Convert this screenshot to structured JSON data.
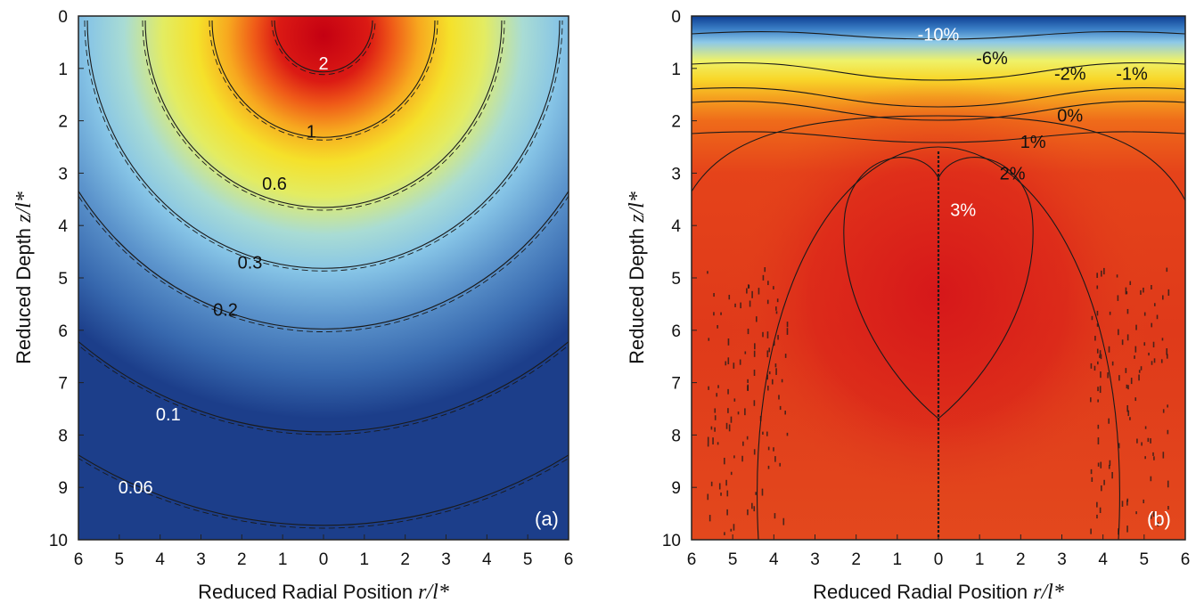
{
  "chart_data": [
    {
      "type": "heatmap",
      "panel_label": "(a)",
      "xlabel": {
        "prefix": "Reduced Radial Position ",
        "italic": "r/l*"
      },
      "ylabel": {
        "prefix": "Reduced Depth ",
        "italic": "z/l*"
      },
      "xlim": [
        -6,
        6
      ],
      "ylim": [
        0,
        10
      ],
      "xtick_labels": [
        "6",
        "5",
        "4",
        "3",
        "2",
        "1",
        "0",
        "1",
        "2",
        "3",
        "4",
        "5",
        "6"
      ],
      "ytick_labels": [
        "0",
        "1",
        "2",
        "3",
        "4",
        "5",
        "6",
        "7",
        "8",
        "9",
        "10"
      ],
      "contour_levels": [
        {
          "label": "2",
          "label_r": 0.0,
          "label_z": 0.9,
          "label_color": "#ffffff"
        },
        {
          "label": "1",
          "label_r": -0.3,
          "label_z": 2.2,
          "label_color": "#111111"
        },
        {
          "label": "0.6",
          "label_r": -1.2,
          "label_z": 3.2,
          "label_color": "#111111"
        },
        {
          "label": "0.3",
          "label_r": -1.8,
          "label_z": 4.7,
          "label_color": "#111111"
        },
        {
          "label": "0.2",
          "label_r": -2.4,
          "label_z": 5.6,
          "label_color": "#111111"
        },
        {
          "label": "0.1",
          "label_r": -3.8,
          "label_z": 7.6,
          "label_color": "#ffffff"
        },
        {
          "label": "0.06",
          "label_r": -4.6,
          "label_z": 9.0,
          "label_color": "#ffffff"
        }
      ]
    },
    {
      "type": "heatmap",
      "panel_label": "(b)",
      "xlabel": {
        "prefix": "Reduced Radial Position ",
        "italic": "r/l*"
      },
      "ylabel": {
        "prefix": "Reduced Depth ",
        "italic": "z/l*"
      },
      "xlim": [
        -6,
        6
      ],
      "ylim": [
        0,
        10
      ],
      "xtick_labels": [
        "6",
        "5",
        "4",
        "3",
        "2",
        "1",
        "0",
        "1",
        "2",
        "3",
        "4",
        "5",
        "6"
      ],
      "ytick_labels": [
        "0",
        "1",
        "2",
        "3",
        "4",
        "5",
        "6",
        "7",
        "8",
        "9",
        "10"
      ],
      "contour_levels": [
        {
          "label": "-10%",
          "label_r": 0.0,
          "label_z": 0.35,
          "label_color": "#ffffff"
        },
        {
          "label": "-6%",
          "label_r": 1.3,
          "label_z": 0.8,
          "label_color": "#111111"
        },
        {
          "label": "-2%",
          "label_r": 3.2,
          "label_z": 1.1,
          "label_color": "#111111"
        },
        {
          "label": "-1%",
          "label_r": 4.7,
          "label_z": 1.1,
          "label_color": "#111111"
        },
        {
          "label": "0%",
          "label_r": 3.2,
          "label_z": 1.9,
          "label_color": "#111111"
        },
        {
          "label": "1%",
          "label_r": 2.3,
          "label_z": 2.4,
          "label_color": "#111111"
        },
        {
          "label": "2%",
          "label_r": 1.8,
          "label_z": 3.0,
          "label_color": "#111111"
        },
        {
          "label": "3%",
          "label_r": 0.6,
          "label_z": 3.7,
          "label_color": "#ffffff"
        }
      ]
    }
  ]
}
